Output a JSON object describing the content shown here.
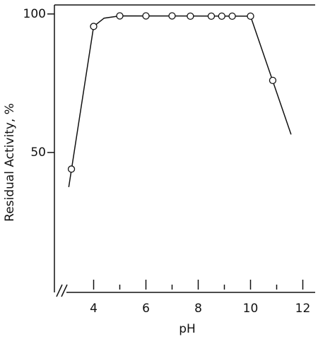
{
  "chart_data": {
    "type": "line",
    "x_label": "pH",
    "y_label": "Residual Activity, %",
    "xlim": [
      2.5,
      12.5
    ],
    "ylim": [
      0,
      103
    ],
    "xticks": [
      4,
      6,
      8,
      10,
      12
    ],
    "xminor": [
      5,
      7,
      9,
      11
    ],
    "yticks": [
      50,
      100
    ],
    "axis_break": true,
    "color": "#111111",
    "points": {
      "x": [
        3.15,
        4.0,
        5.0,
        6.0,
        7.0,
        7.7,
        8.5,
        8.9,
        9.3,
        10.0,
        10.85
      ],
      "y": [
        44,
        95.5,
        99.3,
        99.3,
        99.3,
        99.2,
        99.2,
        99.2,
        99.2,
        99.2,
        76
      ]
    },
    "curve": {
      "x": [
        3.05,
        4.0,
        4.4,
        5.0,
        10.0,
        11.55
      ],
      "y": [
        37.5,
        95.5,
        98.5,
        99.3,
        99.2,
        56.5
      ]
    }
  }
}
